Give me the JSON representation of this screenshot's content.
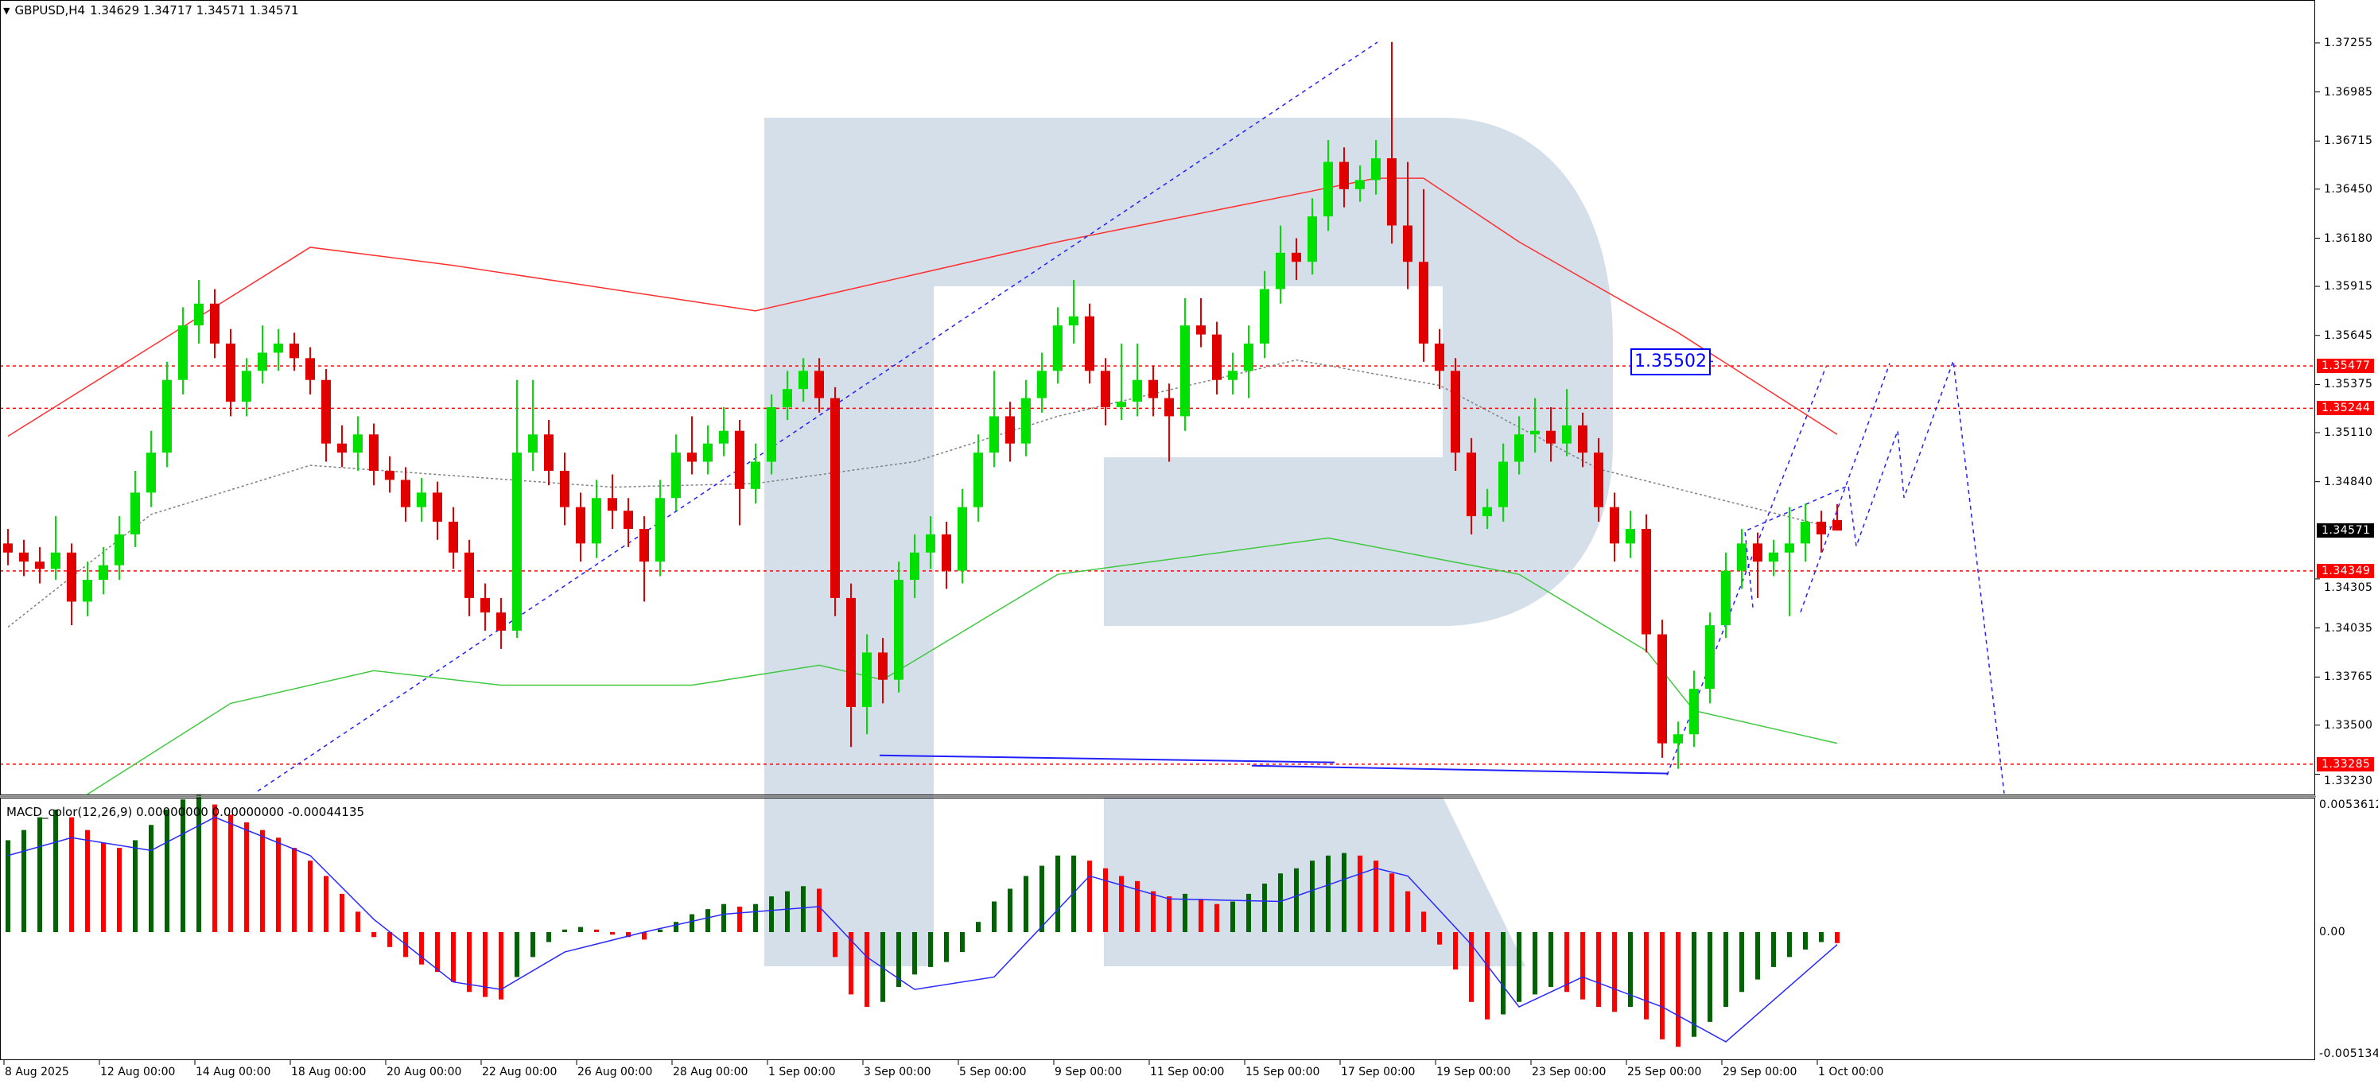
{
  "header": {
    "dropdown_icon": "triangle-down-icon",
    "symbol": "GBPUSD,H4",
    "ohlc": "1.34629 1.34717 1.34571 1.34571"
  },
  "macd_header": "MACD_color(12,26,9) 0.00000000 0.00000000 -0.00044135",
  "price_axis": {
    "ticks": [
      "1.37255",
      "1.36985",
      "1.36715",
      "1.36450",
      "1.36180",
      "1.35915",
      "1.35645",
      "1.35375",
      "1.35110",
      "1.34840",
      "1.34305",
      "1.34035",
      "1.33765",
      "1.33500",
      "1.33230"
    ],
    "levels": [
      "1.35477",
      "1.35244",
      "1.34349",
      "1.33285"
    ],
    "current": "1.34571",
    "level_color": "#ff0000",
    "current_color": "#000000"
  },
  "macd_axis": {
    "ticks": [
      "0.0053612",
      "0.00",
      "-0.0051347"
    ]
  },
  "time_axis": [
    "8 Aug 2025",
    "12 Aug 00:00",
    "14 Aug 00:00",
    "18 Aug 00:00",
    "20 Aug 00:00",
    "22 Aug 00:00",
    "26 Aug 00:00",
    "28 Aug 00:00",
    "1 Sep 00:00",
    "3 Sep 00:00",
    "5 Sep 00:00",
    "9 Sep 00:00",
    "11 Sep 00:00",
    "15 Sep 00:00",
    "17 Sep 00:00",
    "19 Sep 00:00",
    "23 Sep 00:00",
    "25 Sep 00:00",
    "29 Sep 00:00",
    "1 Oct 00:00"
  ],
  "annotation_label": "1.35502",
  "colors": {
    "bull": "#00e000",
    "bear": "#e00000",
    "ma_red": "#ff3030",
    "ma_green": "#40c840",
    "ma_gray": "#808080",
    "drawing_blue": "#2020ff",
    "macd_up": "#006400",
    "macd_down": "#ff0000",
    "signal": "#2828ff",
    "watermark": "#d5dfea"
  },
  "chart_data": {
    "type": "candlestick",
    "symbol": "GBPUSD",
    "timeframe": "H4",
    "ylim": [
      1.33114,
      1.37491
    ],
    "candles": [
      [
        1.345,
        1.3458,
        1.3438,
        1.3445
      ],
      [
        1.3445,
        1.3452,
        1.3432,
        1.344
      ],
      [
        1.344,
        1.3448,
        1.3428,
        1.3436
      ],
      [
        1.3436,
        1.3465,
        1.343,
        1.3445
      ],
      [
        1.3445,
        1.345,
        1.3405,
        1.3418
      ],
      [
        1.3418,
        1.344,
        1.341,
        1.343
      ],
      [
        1.343,
        1.3448,
        1.3422,
        1.3438
      ],
      [
        1.3438,
        1.3465,
        1.343,
        1.3455
      ],
      [
        1.3455,
        1.349,
        1.3448,
        1.3478
      ],
      [
        1.3478,
        1.3512,
        1.347,
        1.35
      ],
      [
        1.35,
        1.355,
        1.3492,
        1.354
      ],
      [
        1.354,
        1.358,
        1.3532,
        1.357
      ],
      [
        1.357,
        1.3595,
        1.356,
        1.3582
      ],
      [
        1.3582,
        1.359,
        1.3552,
        1.356
      ],
      [
        1.356,
        1.3568,
        1.352,
        1.3528
      ],
      [
        1.3528,
        1.3552,
        1.352,
        1.3545
      ],
      [
        1.3545,
        1.357,
        1.3538,
        1.3555
      ],
      [
        1.3555,
        1.3568,
        1.3545,
        1.356
      ],
      [
        1.356,
        1.3566,
        1.3545,
        1.3552
      ],
      [
        1.3552,
        1.3558,
        1.3532,
        1.354
      ],
      [
        1.354,
        1.3546,
        1.3495,
        1.3505
      ],
      [
        1.3505,
        1.3515,
        1.3492,
        1.35
      ],
      [
        1.35,
        1.352,
        1.349,
        1.351
      ],
      [
        1.351,
        1.3516,
        1.3482,
        1.349
      ],
      [
        1.349,
        1.3498,
        1.3478,
        1.3485
      ],
      [
        1.3485,
        1.3492,
        1.3462,
        1.347
      ],
      [
        1.347,
        1.3486,
        1.3462,
        1.3478
      ],
      [
        1.3478,
        1.3484,
        1.3452,
        1.3462
      ],
      [
        1.3462,
        1.347,
        1.3436,
        1.3445
      ],
      [
        1.3445,
        1.3452,
        1.341,
        1.342
      ],
      [
        1.342,
        1.3428,
        1.3402,
        1.3412
      ],
      [
        1.3412,
        1.342,
        1.3392,
        1.3402
      ],
      [
        1.3402,
        1.354,
        1.3398,
        1.35
      ],
      [
        1.35,
        1.354,
        1.349,
        1.351
      ],
      [
        1.351,
        1.3518,
        1.3482,
        1.349
      ],
      [
        1.349,
        1.35,
        1.346,
        1.347
      ],
      [
        1.347,
        1.3478,
        1.344,
        1.345
      ],
      [
        1.345,
        1.3485,
        1.3442,
        1.3475
      ],
      [
        1.3475,
        1.3488,
        1.3458,
        1.3468
      ],
      [
        1.3468,
        1.3475,
        1.3448,
        1.3458
      ],
      [
        1.3458,
        1.3465,
        1.3418,
        1.344
      ],
      [
        1.344,
        1.3485,
        1.3432,
        1.3475
      ],
      [
        1.3475,
        1.351,
        1.3468,
        1.35
      ],
      [
        1.35,
        1.352,
        1.3488,
        1.3495
      ],
      [
        1.3495,
        1.3515,
        1.3488,
        1.3505
      ],
      [
        1.3505,
        1.3525,
        1.3498,
        1.3512
      ],
      [
        1.3512,
        1.3518,
        1.346,
        1.348
      ],
      [
        1.348,
        1.3505,
        1.3472,
        1.3495
      ],
      [
        1.3495,
        1.3532,
        1.3488,
        1.3525
      ],
      [
        1.3525,
        1.3545,
        1.3518,
        1.3535
      ],
      [
        1.3535,
        1.3552,
        1.3528,
        1.3545
      ],
      [
        1.3545,
        1.3552,
        1.3522,
        1.353
      ],
      [
        1.353,
        1.3536,
        1.341,
        1.342
      ],
      [
        1.342,
        1.3428,
        1.3338,
        1.336
      ],
      [
        1.336,
        1.34,
        1.3345,
        1.339
      ],
      [
        1.339,
        1.3398,
        1.3362,
        1.3375
      ],
      [
        1.3375,
        1.344,
        1.3368,
        1.343
      ],
      [
        1.343,
        1.3455,
        1.342,
        1.3445
      ],
      [
        1.3445,
        1.3465,
        1.3436,
        1.3455
      ],
      [
        1.3455,
        1.3462,
        1.3425,
        1.3435
      ],
      [
        1.3435,
        1.348,
        1.3428,
        1.347
      ],
      [
        1.347,
        1.351,
        1.3462,
        1.35
      ],
      [
        1.35,
        1.3545,
        1.3492,
        1.352
      ],
      [
        1.352,
        1.3528,
        1.3495,
        1.3505
      ],
      [
        1.3505,
        1.354,
        1.3498,
        1.353
      ],
      [
        1.353,
        1.3555,
        1.3522,
        1.3545
      ],
      [
        1.3545,
        1.358,
        1.3538,
        1.357
      ],
      [
        1.357,
        1.3595,
        1.356,
        1.3575
      ],
      [
        1.3575,
        1.3582,
        1.3538,
        1.3545
      ],
      [
        1.3545,
        1.3552,
        1.3515,
        1.3525
      ],
      [
        1.3525,
        1.356,
        1.3518,
        1.3528
      ],
      [
        1.3528,
        1.356,
        1.352,
        1.354
      ],
      [
        1.354,
        1.3548,
        1.352,
        1.353
      ],
      [
        1.353,
        1.3538,
        1.3495,
        1.352
      ],
      [
        1.352,
        1.3585,
        1.3512,
        1.357
      ],
      [
        1.357,
        1.3585,
        1.3558,
        1.3565
      ],
      [
        1.3565,
        1.3572,
        1.3532,
        1.354
      ],
      [
        1.354,
        1.3555,
        1.3532,
        1.3545
      ],
      [
        1.3545,
        1.357,
        1.353,
        1.356
      ],
      [
        1.356,
        1.36,
        1.3552,
        1.359
      ],
      [
        1.359,
        1.3625,
        1.3582,
        1.361
      ],
      [
        1.361,
        1.3618,
        1.3595,
        1.3605
      ],
      [
        1.3605,
        1.364,
        1.3598,
        1.363
      ],
      [
        1.363,
        1.3672,
        1.3622,
        1.366
      ],
      [
        1.366,
        1.3668,
        1.3635,
        1.3645
      ],
      [
        1.3645,
        1.3658,
        1.3638,
        1.365
      ],
      [
        1.365,
        1.3672,
        1.3642,
        1.3662
      ],
      [
        1.3662,
        1.3726,
        1.3615,
        1.3625
      ],
      [
        1.3625,
        1.366,
        1.359,
        1.3605
      ],
      [
        1.3605,
        1.3645,
        1.355,
        1.356
      ],
      [
        1.356,
        1.3568,
        1.3535,
        1.3545
      ],
      [
        1.3545,
        1.3552,
        1.349,
        1.35
      ],
      [
        1.35,
        1.3508,
        1.3455,
        1.3465
      ],
      [
        1.3465,
        1.348,
        1.3458,
        1.347
      ],
      [
        1.347,
        1.3505,
        1.3462,
        1.3495
      ],
      [
        1.3495,
        1.352,
        1.3488,
        1.351
      ],
      [
        1.351,
        1.353,
        1.35,
        1.3512
      ],
      [
        1.3512,
        1.3525,
        1.3495,
        1.3505
      ],
      [
        1.3505,
        1.3535,
        1.3498,
        1.3515
      ],
      [
        1.3515,
        1.3522,
        1.3492,
        1.35
      ],
      [
        1.35,
        1.3508,
        1.3462,
        1.347
      ],
      [
        1.347,
        1.3478,
        1.344,
        1.345
      ],
      [
        1.345,
        1.3468,
        1.3442,
        1.3458
      ],
      [
        1.3458,
        1.3466,
        1.339,
        1.34
      ],
      [
        1.34,
        1.3408,
        1.3332,
        1.334
      ],
      [
        1.334,
        1.3352,
        1.3326,
        1.3345
      ],
      [
        1.3345,
        1.338,
        1.3338,
        1.337
      ],
      [
        1.337,
        1.3412,
        1.3362,
        1.3405
      ],
      [
        1.3405,
        1.3445,
        1.3398,
        1.3435
      ],
      [
        1.3435,
        1.3458,
        1.3425,
        1.345
      ],
      [
        1.345,
        1.3456,
        1.342,
        1.344
      ],
      [
        1.344,
        1.3452,
        1.3432,
        1.3445
      ],
      [
        1.3445,
        1.347,
        1.341,
        1.345
      ],
      [
        1.345,
        1.3472,
        1.344,
        1.3462
      ],
      [
        1.3462,
        1.3468,
        1.3445,
        1.3455
      ],
      [
        1.34629,
        1.34717,
        1.34571,
        1.34571
      ]
    ],
    "moving_averages": {
      "red": [
        [
          0,
          1.3509
        ],
        [
          19,
          1.3613
        ],
        [
          28,
          1.3603
        ],
        [
          47,
          1.3578
        ],
        [
          66,
          1.3616
        ],
        [
          86,
          1.3651
        ],
        [
          89,
          1.3651
        ],
        [
          95,
          1.3616
        ],
        [
          105,
          1.3566
        ],
        [
          115,
          1.351
        ]
      ],
      "green": [
        [
          5,
          1.3312
        ],
        [
          14,
          1.3362
        ],
        [
          23,
          1.338
        ],
        [
          31,
          1.3372
        ],
        [
          43,
          1.3372
        ],
        [
          51,
          1.3383
        ],
        [
          55,
          1.3375
        ],
        [
          66,
          1.3433
        ],
        [
          83,
          1.3453
        ],
        [
          95,
          1.3433
        ],
        [
          103,
          1.3391
        ],
        [
          106,
          1.3358
        ],
        [
          115,
          1.334
        ]
      ],
      "gray": [
        [
          0,
          1.3404
        ],
        [
          9,
          1.3466
        ],
        [
          19,
          1.3493
        ],
        [
          38,
          1.3481
        ],
        [
          47,
          1.3483
        ],
        [
          57,
          1.3495
        ],
        [
          66,
          1.352
        ],
        [
          81,
          1.3551
        ],
        [
          90,
          1.3537
        ],
        [
          100,
          1.3491
        ],
        [
          115,
          1.3458
        ]
      ]
    },
    "horizontal_levels": [
      1.35477,
      1.35244,
      1.34349,
      1.33285
    ],
    "drawings": {
      "trendline": [
        [
          15.7,
          1.33137
        ],
        [
          86.1,
          1.37259
        ]
      ],
      "support_lines": [
        [
          [
            54.8,
            1.33334
          ],
          [
            83.4,
            1.33295
          ]
        ],
        [
          [
            78.2,
            1.33277
          ],
          [
            104.4,
            1.33234
          ]
        ]
      ],
      "forecast_path": [
        [
          109.7,
          1.34148
        ],
        [
          109.2,
          1.34568
        ],
        [
          115.7,
          1.34818
        ],
        [
          116.2,
          1.34485
        ],
        [
          118.8,
          1.3512
        ],
        [
          119.2,
          1.34752
        ],
        [
          122.3,
          1.35505
        ],
        [
          125.5,
          1.33124
        ]
      ],
      "forecast_alt": [
        [
          [
            104.3,
            1.33225
          ],
          [
            114.3,
            1.35474
          ]
        ],
        [
          [
            112.7,
            1.34122
          ],
          [
            118.3,
            1.35491
          ]
        ]
      ],
      "label_price": 1.35502
    },
    "macd": {
      "params": [
        12,
        26,
        9
      ],
      "ylim": [
        -0.0051347,
        0.0053612
      ],
      "histogram": [
        0.0036,
        0.004,
        0.0045,
        0.0048,
        0.0045,
        0.004,
        0.0035,
        0.0033,
        0.0036,
        0.0042,
        0.0048,
        0.0052,
        0.0054,
        0.005,
        0.0046,
        0.0043,
        0.004,
        0.0037,
        0.0033,
        0.0028,
        0.0022,
        0.0015,
        0.0008,
        -0.0002,
        -0.0006,
        -0.001,
        -0.0013,
        -0.0016,
        -0.002,
        -0.0024,
        -0.0026,
        -0.0027,
        -0.0018,
        -0.001,
        -0.0004,
        0.0001,
        0.0002,
        0.0001,
        -0.0001,
        -0.0002,
        -0.0003,
        0.0001,
        0.0004,
        0.0007,
        0.0009,
        0.0011,
        0.001,
        0.0011,
        0.0014,
        0.0016,
        0.0018,
        0.0017,
        -0.001,
        -0.0025,
        -0.003,
        -0.0028,
        -0.0022,
        -0.0017,
        -0.0014,
        -0.0012,
        -0.0008,
        0.0004,
        0.0012,
        0.0017,
        0.0022,
        0.0026,
        0.003,
        0.003,
        0.0028,
        0.0025,
        0.0022,
        0.002,
        0.0016,
        0.0014,
        0.0015,
        0.0013,
        0.0011,
        0.0012,
        0.0015,
        0.0019,
        0.0023,
        0.0025,
        0.0028,
        0.003,
        0.0031,
        0.003,
        0.0028,
        0.0023,
        0.0016,
        0.0008,
        -0.0005,
        -0.0015,
        -0.0028,
        -0.0035,
        -0.0033,
        -0.0028,
        -0.0025,
        -0.0022,
        -0.0024,
        -0.0027,
        -0.003,
        -0.0032,
        -0.003,
        -0.0035,
        -0.0043,
        -0.0046,
        -0.0042,
        -0.0036,
        -0.003,
        -0.0024,
        -0.0019,
        -0.0014,
        -0.001,
        -0.0007,
        -0.0004,
        -0.00044
      ],
      "signal": [
        [
          0,
          0.003
        ],
        [
          4,
          0.0037
        ],
        [
          9,
          0.0032
        ],
        [
          13,
          0.0045
        ],
        [
          19,
          0.003
        ],
        [
          23,
          0.0005
        ],
        [
          28,
          -0.002
        ],
        [
          31,
          -0.0023
        ],
        [
          35,
          -0.0008
        ],
        [
          40,
          0
        ],
        [
          45,
          0.0007
        ],
        [
          51,
          0.001
        ],
        [
          54,
          -0.001
        ],
        [
          57,
          -0.0023
        ],
        [
          62,
          -0.0018
        ],
        [
          68,
          0.0022
        ],
        [
          73,
          0.0013
        ],
        [
          80,
          0.0012
        ],
        [
          86,
          0.0025
        ],
        [
          88,
          0.0022
        ],
        [
          92,
          -0.0005
        ],
        [
          95,
          -0.003
        ],
        [
          99,
          -0.0018
        ],
        [
          104,
          -0.003
        ],
        [
          108,
          -0.0044
        ],
        [
          115,
          -0.0005
        ]
      ]
    }
  }
}
